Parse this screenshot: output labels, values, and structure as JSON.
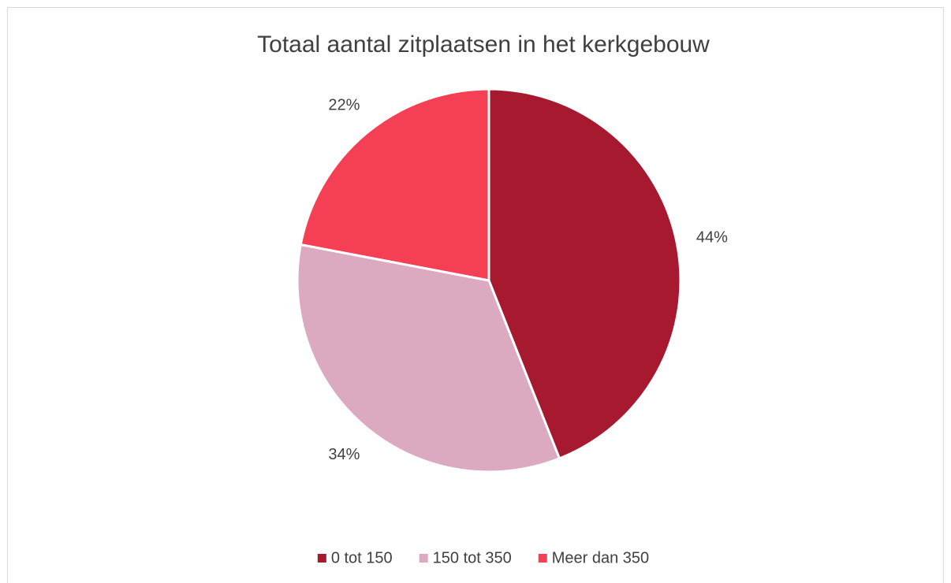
{
  "chart_data": {
    "type": "pie",
    "title": "Totaal aantal zitplaatsen in het kerkgebouw",
    "categories": [
      "0 tot 150",
      "150 tot 350",
      "Meer dan 350"
    ],
    "values": [
      44,
      34,
      22
    ],
    "value_labels": [
      "44%",
      "34%",
      "22%"
    ],
    "colors": [
      "#a6192e",
      "#dcaac0",
      "#f43f54"
    ],
    "legend": "bottom"
  }
}
